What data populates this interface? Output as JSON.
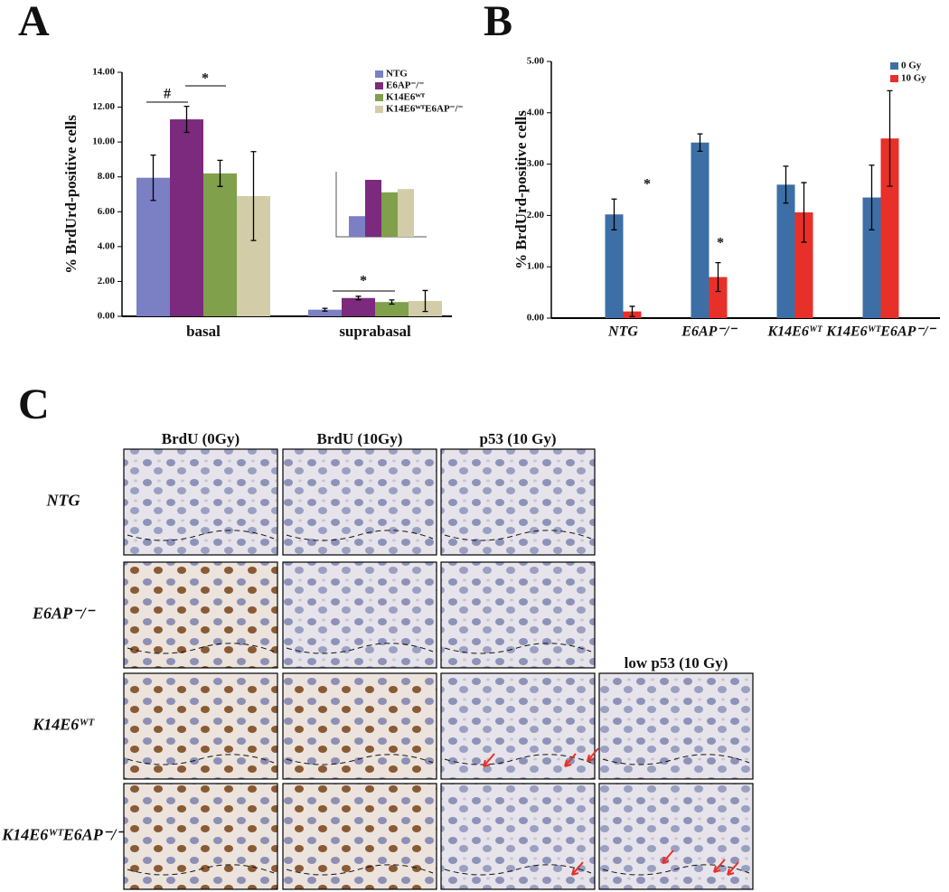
{
  "chart_data": [
    {
      "type": "bar",
      "panel": "A",
      "y_label": "% BrdUrd-positive cells",
      "categories": [
        "basal",
        "suprabasal"
      ],
      "series": [
        {
          "name": "NTG",
          "color": "#7b7fc4",
          "values": [
            7.95,
            0.38
          ],
          "errors": [
            1.3,
            0.08
          ]
        },
        {
          "name": "E6AP⁻/⁻",
          "color": "#7b2a7d",
          "values": [
            11.3,
            1.05
          ],
          "errors": [
            0.75,
            0.1
          ]
        },
        {
          "name": "K14E6ᵂᵀ",
          "color": "#80a04c",
          "values": [
            8.2,
            0.82
          ],
          "errors": [
            0.75,
            0.12
          ]
        },
        {
          "name": "K14E6ᵂᵀE6AP⁻/⁻",
          "color": "#d2cca8",
          "values": [
            6.9,
            0.88
          ],
          "errors": [
            2.55,
            0.6
          ]
        }
      ],
      "ylim": [
        0,
        14
      ],
      "yticks": [
        {
          "value": 0,
          "label": "0.00"
        },
        {
          "value": 2,
          "label": "2.00"
        },
        {
          "value": 4,
          "label": "4.00"
        },
        {
          "value": 6,
          "label": "6.00"
        },
        {
          "value": 8,
          "label": "8.00"
        },
        {
          "value": 10,
          "label": "10.00"
        },
        {
          "value": 12,
          "label": "12.00"
        },
        {
          "value": 14,
          "label": "14.00"
        }
      ],
      "annotations": [
        "#",
        "*",
        "*"
      ],
      "inset": {
        "ylim": [
          0,
          1.2
        ]
      }
    },
    {
      "type": "bar",
      "panel": "B",
      "y_label": "% BrdUrd-positive cells",
      "categories": [
        "NTG",
        "E6AP⁻/⁻",
        "K14E6ᵂᵀ",
        "K14E6ᵂᵀE6AP⁻/⁻"
      ],
      "series": [
        {
          "name": "0 Gy",
          "color": "#3d6fa6",
          "values": [
            2.02,
            3.42,
            2.6,
            2.35
          ],
          "errors": [
            0.3,
            0.17,
            0.36,
            0.63
          ]
        },
        {
          "name": "10 Gy",
          "color": "#e8302a",
          "values": [
            0.13,
            0.8,
            2.06,
            3.5
          ],
          "errors": [
            0.1,
            0.28,
            0.58,
            0.93
          ]
        }
      ],
      "ylim": [
        0,
        5
      ],
      "yticks": [
        {
          "value": 0,
          "label": "0.00"
        },
        {
          "value": 1,
          "label": "1.00"
        },
        {
          "value": 2,
          "label": "2.00"
        },
        {
          "value": 3,
          "label": "3.00"
        },
        {
          "value": 4,
          "label": "4.00"
        },
        {
          "value": 5,
          "label": "5.00"
        }
      ],
      "annotations": [
        "*",
        "*"
      ]
    }
  ],
  "panel_c": {
    "label": "C",
    "columns": [
      "BrdU (0Gy)",
      "BrdU (10Gy)",
      "p53 (10 Gy)"
    ],
    "extra_column": "low p53 (10 Gy)",
    "rows": [
      "NTG",
      "E6AP⁻/⁻",
      "K14E6ᵂᵀ",
      "K14E6ᵂᵀE6AP⁻/⁻"
    ]
  }
}
